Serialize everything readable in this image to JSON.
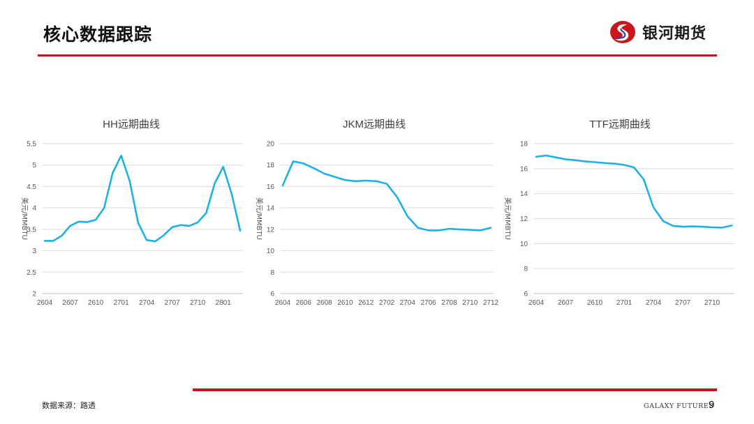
{
  "header": {
    "title": "核心数据跟踪",
    "logo_text": "银河期货"
  },
  "footer": {
    "source": "数据来源：路透",
    "brand": "GALAXY FUTURES",
    "page_number": "9"
  },
  "colors": {
    "accent_red": "#c8161d",
    "series": "#1fb1e3",
    "logo_blue": "#1b4f9c"
  },
  "chart_data": [
    {
      "type": "line",
      "title": "HH远期曲线",
      "ylabel": "美元/MMBTU",
      "xlabel": "",
      "ylim": [
        2,
        5.5
      ],
      "yticks": [
        "2",
        "2.5",
        "3",
        "3.5",
        "4",
        "4.5",
        "5",
        "5.5"
      ],
      "xticks": [
        "2604",
        "2607",
        "2610",
        "2701",
        "2704",
        "2707",
        "2710",
        "2801"
      ],
      "grid": true,
      "series": [
        {
          "x": [
            "2604",
            "2605",
            "2606",
            "2607",
            "2608",
            "2609",
            "2610",
            "2611",
            "2612",
            "2701",
            "2702",
            "2703",
            "2704",
            "2705",
            "2706",
            "2707",
            "2708",
            "2709",
            "2710",
            "2711",
            "2712",
            "2801",
            "2802",
            "2803"
          ],
          "values": [
            3.23,
            3.23,
            3.35,
            3.58,
            3.68,
            3.67,
            3.72,
            4.0,
            4.82,
            5.22,
            4.63,
            3.65,
            3.25,
            3.22,
            3.36,
            3.55,
            3.6,
            3.58,
            3.66,
            3.88,
            4.57,
            4.96,
            4.33,
            3.47
          ]
        }
      ]
    },
    {
      "type": "line",
      "title": "JKM远期曲线",
      "ylabel": "美元/MMBTU",
      "xlabel": "",
      "ylim": [
        6,
        20
      ],
      "yticks": [
        "6",
        "8",
        "10",
        "12",
        "14",
        "16",
        "18",
        "20"
      ],
      "xticks": [
        "2604",
        "2606",
        "2608",
        "2610",
        "2612",
        "2702",
        "2704",
        "2706",
        "2708",
        "2710",
        "2712"
      ],
      "grid": true,
      "series": [
        {
          "x": [
            "2604",
            "2605",
            "2606",
            "2607",
            "2608",
            "2609",
            "2610",
            "2611",
            "2612",
            "2701",
            "2702",
            "2703",
            "2704",
            "2705",
            "2706",
            "2707",
            "2708",
            "2709",
            "2710",
            "2711",
            "2712"
          ],
          "values": [
            16.1,
            18.35,
            18.15,
            17.7,
            17.2,
            16.9,
            16.6,
            16.5,
            16.55,
            16.5,
            16.25,
            15.0,
            13.2,
            12.15,
            11.9,
            11.9,
            12.05,
            12.0,
            11.95,
            11.9,
            12.15
          ]
        }
      ]
    },
    {
      "type": "line",
      "title": "TTF远期曲线",
      "ylabel": "美元/MMBTU",
      "xlabel": "",
      "ylim": [
        6,
        18
      ],
      "yticks": [
        "6",
        "8",
        "10",
        "12",
        "14",
        "16",
        "18"
      ],
      "xticks": [
        "2604",
        "2607",
        "2610",
        "2701",
        "2704",
        "2707",
        "2710"
      ],
      "grid": true,
      "series": [
        {
          "x": [
            "2604",
            "2605",
            "2606",
            "2607",
            "2608",
            "2609",
            "2610",
            "2611",
            "2612",
            "2701",
            "2702",
            "2703",
            "2704",
            "2705",
            "2706",
            "2707",
            "2708",
            "2709",
            "2710",
            "2711",
            "2712"
          ],
          "values": [
            16.95,
            17.05,
            16.9,
            16.75,
            16.68,
            16.58,
            16.52,
            16.45,
            16.4,
            16.3,
            16.1,
            15.15,
            12.9,
            11.8,
            11.42,
            11.35,
            11.38,
            11.35,
            11.3,
            11.28,
            11.45
          ]
        }
      ]
    }
  ]
}
